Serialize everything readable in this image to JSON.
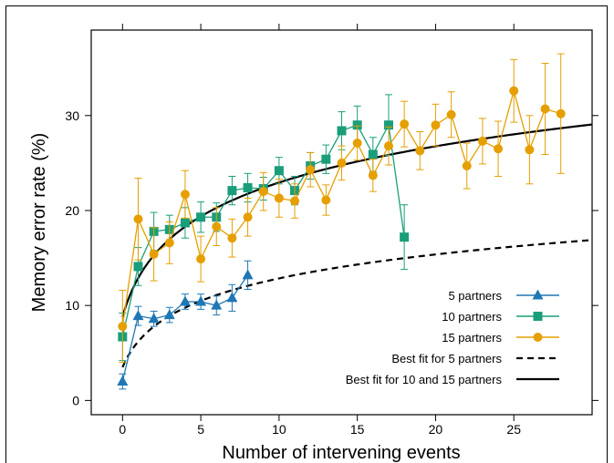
{
  "chart_data": {
    "type": "line",
    "title": "",
    "xlabel": "Number of intervening events",
    "ylabel": "Memory error rate (%)",
    "xlim": [
      -2,
      30
    ],
    "ylim": [
      -1.5,
      39
    ],
    "xticks": [
      0,
      5,
      10,
      15,
      20,
      25
    ],
    "yticks": [
      0,
      10,
      20,
      30
    ],
    "grid": false,
    "legend_position": "bottom-right",
    "series": [
      {
        "name": "5 partners",
        "color": "#1f77b4",
        "marker": "triangle",
        "x": [
          0,
          1,
          2,
          3,
          4,
          5,
          6,
          7,
          8
        ],
        "y": [
          2.0,
          8.9,
          8.6,
          9.0,
          10.4,
          10.4,
          10.0,
          10.8,
          13.2
        ],
        "err": [
          0.8,
          1.0,
          0.8,
          0.8,
          0.8,
          0.8,
          1.0,
          1.4,
          1.5
        ]
      },
      {
        "name": "10 partners",
        "color": "#1a9e7a",
        "marker": "square",
        "x": [
          0,
          1,
          2,
          3,
          4,
          5,
          6,
          7,
          8,
          9,
          10,
          11,
          12,
          13,
          14,
          15,
          16,
          17,
          18
        ],
        "y": [
          6.7,
          14.1,
          17.8,
          18.0,
          18.7,
          19.3,
          19.3,
          22.1,
          22.4,
          22.3,
          24.2,
          22.1,
          24.7,
          25.4,
          28.4,
          29.0,
          25.9,
          29.0,
          17.2
        ],
        "err": [
          2.5,
          2.0,
          2.0,
          1.5,
          1.6,
          1.6,
          1.5,
          1.5,
          1.5,
          1.2,
          1.4,
          1.5,
          1.4,
          1.5,
          2.0,
          2.0,
          1.8,
          3.2,
          3.4
        ]
      },
      {
        "name": "15 partners",
        "color": "#e69f00",
        "marker": "circle",
        "x": [
          0,
          1,
          2,
          3,
          4,
          5,
          6,
          7,
          8,
          9,
          10,
          11,
          12,
          13,
          14,
          15,
          16,
          17,
          18,
          19,
          20,
          21,
          22,
          23,
          24,
          25,
          26,
          27,
          28
        ],
        "y": [
          7.8,
          19.1,
          15.4,
          16.6,
          21.7,
          14.9,
          18.3,
          17.1,
          19.3,
          22.0,
          21.3,
          21.0,
          24.3,
          21.1,
          25.0,
          27.1,
          23.7,
          26.8,
          29.1,
          26.3,
          29.0,
          30.1,
          24.7,
          27.3,
          26.5,
          32.6,
          26.4,
          30.7,
          30.2
        ],
        "err": [
          3.8,
          4.3,
          2.8,
          2.2,
          2.5,
          2.4,
          2.0,
          2.0,
          2.0,
          2.0,
          2.0,
          1.8,
          1.8,
          1.6,
          1.8,
          1.8,
          1.7,
          2.0,
          2.4,
          2.0,
          2.2,
          2.4,
          2.4,
          2.4,
          2.9,
          3.3,
          3.6,
          4.8,
          6.3
        ]
      }
    ],
    "fits": [
      {
        "name": "Best fit for 5 partners",
        "style": "dashed",
        "color": "#000000",
        "a": 3.5,
        "b": 3.9,
        "x_start": 0,
        "x_end": 30
      },
      {
        "name": "Best fit for 10 and 15 partners",
        "style": "solid",
        "color": "#000000",
        "a": 8.8,
        "b": 5.9,
        "x_start": 0,
        "x_end": 30
      }
    ]
  }
}
